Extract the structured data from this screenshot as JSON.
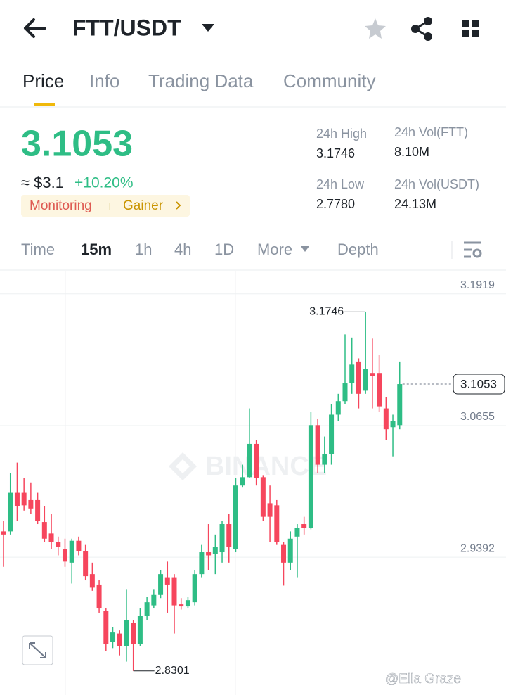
{
  "header": {
    "pair": "FTT/USDT"
  },
  "tabs": [
    "Price",
    "Info",
    "Trading Data",
    "Community"
  ],
  "price": {
    "last": "3.1053",
    "approx": "≈ $3.1",
    "change": "+10.20%",
    "tags": [
      "Monitoring",
      "Gainer"
    ]
  },
  "stats": [
    {
      "label": "24h High",
      "value": "3.1746"
    },
    {
      "label": "24h Vol(FTT)",
      "value": "8.10M"
    },
    {
      "label": "24h Low",
      "value": "2.7780"
    },
    {
      "label": "24h Vol(USDT)",
      "value": "24.13M"
    }
  ],
  "intervals": [
    "Time",
    "15m",
    "1h",
    "4h",
    "1D",
    "More",
    "Depth"
  ],
  "watermark": "BINANCE",
  "credit": "@Ella Graze",
  "chart_data": {
    "type": "candlestick",
    "up_color": "#2ebd85",
    "down_color": "#f6465d",
    "ylim": [
      2.807,
      3.214
    ],
    "yticks": [
      3.1919,
      3.0655,
      2.9392
    ],
    "grid": true,
    "high_label": "3.1746",
    "low_label": "2.8301",
    "last_label": "3.1053",
    "open": [
      2.964,
      2.964,
      3.001,
      3.001,
      2.994,
      2.994,
      2.973,
      2.962,
      2.954,
      2.947,
      2.934,
      2.955,
      2.945,
      2.923,
      2.913,
      2.888,
      2.858,
      2.866,
      2.854,
      2.876,
      2.856,
      2.883,
      2.893,
      2.903,
      2.92,
      2.92,
      2.894,
      2.892,
      2.896,
      2.923,
      2.944,
      2.942,
      2.944,
      2.971,
      2.947,
      3.008,
      3.016,
      3.048,
      3.016,
      2.991,
      2.989,
      2.951,
      2.934,
      2.959,
      2.971,
      2.967,
      3.066,
      3.028,
      3.038,
      3.076,
      3.089,
      3.106,
      3.127,
      3.099,
      3.116,
      3.116,
      3.082,
      3.064,
      3.066
    ],
    "high": [
      2.974,
      3.02,
      3.03,
      3.015,
      3.011,
      3.001,
      2.988,
      2.981,
      2.959,
      2.957,
      2.957,
      2.959,
      2.951,
      2.934,
      2.917,
      2.89,
      2.872,
      2.869,
      2.908,
      2.879,
      2.89,
      2.901,
      2.908,
      2.927,
      2.935,
      2.923,
      2.9,
      2.901,
      2.927,
      2.951,
      2.971,
      2.961,
      2.974,
      2.981,
      3.015,
      3.028,
      3.082,
      3.052,
      3.018,
      3.008,
      2.994,
      2.954,
      2.964,
      2.971,
      2.978,
      3.079,
      3.072,
      3.055,
      3.086,
      3.096,
      3.153,
      3.15,
      3.13,
      3.1746,
      3.149,
      3.133,
      3.093,
      3.076,
      3.127
    ],
    "low": [
      2.93,
      2.961,
      2.974,
      2.984,
      2.981,
      2.971,
      2.954,
      2.947,
      2.941,
      2.93,
      2.914,
      2.941,
      2.917,
      2.907,
      2.886,
      2.849,
      2.852,
      2.845,
      2.839,
      2.8301,
      2.854,
      2.879,
      2.89,
      2.9,
      2.886,
      2.866,
      2.889,
      2.89,
      2.893,
      2.92,
      2.927,
      2.923,
      2.934,
      2.934,
      2.944,
      3.006,
      3.015,
      3.008,
      2.974,
      2.954,
      2.951,
      2.912,
      2.927,
      2.92,
      2.961,
      2.966,
      3.02,
      3.02,
      3.028,
      3.07,
      3.086,
      3.096,
      3.082,
      3.096,
      3.082,
      3.079,
      3.052,
      3.036,
      3.062
    ],
    "close": [
      2.961,
      3.001,
      2.988,
      2.989,
      2.986,
      2.974,
      2.957,
      2.954,
      2.949,
      2.935,
      2.955,
      2.945,
      2.921,
      2.91,
      2.89,
      2.856,
      2.867,
      2.854,
      2.879,
      2.856,
      2.883,
      2.896,
      2.903,
      2.923,
      2.913,
      2.893,
      2.892,
      2.898,
      2.923,
      2.944,
      2.941,
      2.949,
      2.971,
      2.949,
      3.008,
      3.016,
      3.048,
      3.015,
      2.978,
      2.978,
      2.954,
      2.934,
      2.957,
      2.967,
      2.967,
      3.066,
      3.028,
      3.038,
      3.076,
      3.089,
      3.106,
      3.124,
      3.096,
      3.12,
      3.113,
      3.084,
      3.062,
      3.07,
      3.1053
    ]
  }
}
